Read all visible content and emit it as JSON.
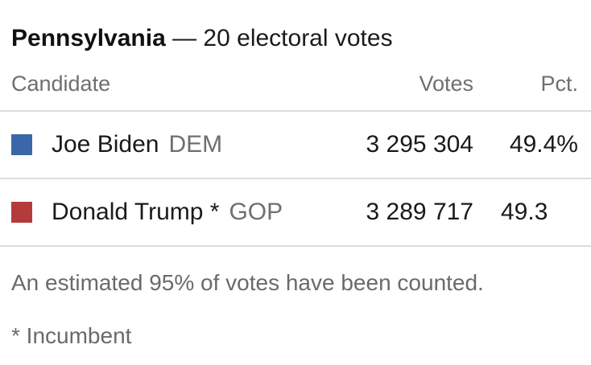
{
  "header": {
    "state": "Pennsylvania",
    "electoral_votes": " — 20 electoral votes"
  },
  "columns": {
    "candidate": "Candidate",
    "votes": "Votes",
    "pct": "Pct."
  },
  "candidates": [
    {
      "name": "Joe Biden",
      "party": "DEM",
      "votes": "3 295 304",
      "pct": "49.4%",
      "color": "#3a67a8"
    },
    {
      "name": "Donald Trump *",
      "party": "GOP",
      "votes": "3 289 717",
      "pct": "49.3",
      "color": "#b53a3a"
    }
  ],
  "notes": {
    "counted": "An estimated 95% of votes have been counted.",
    "incumbent": "* Incumbent"
  }
}
